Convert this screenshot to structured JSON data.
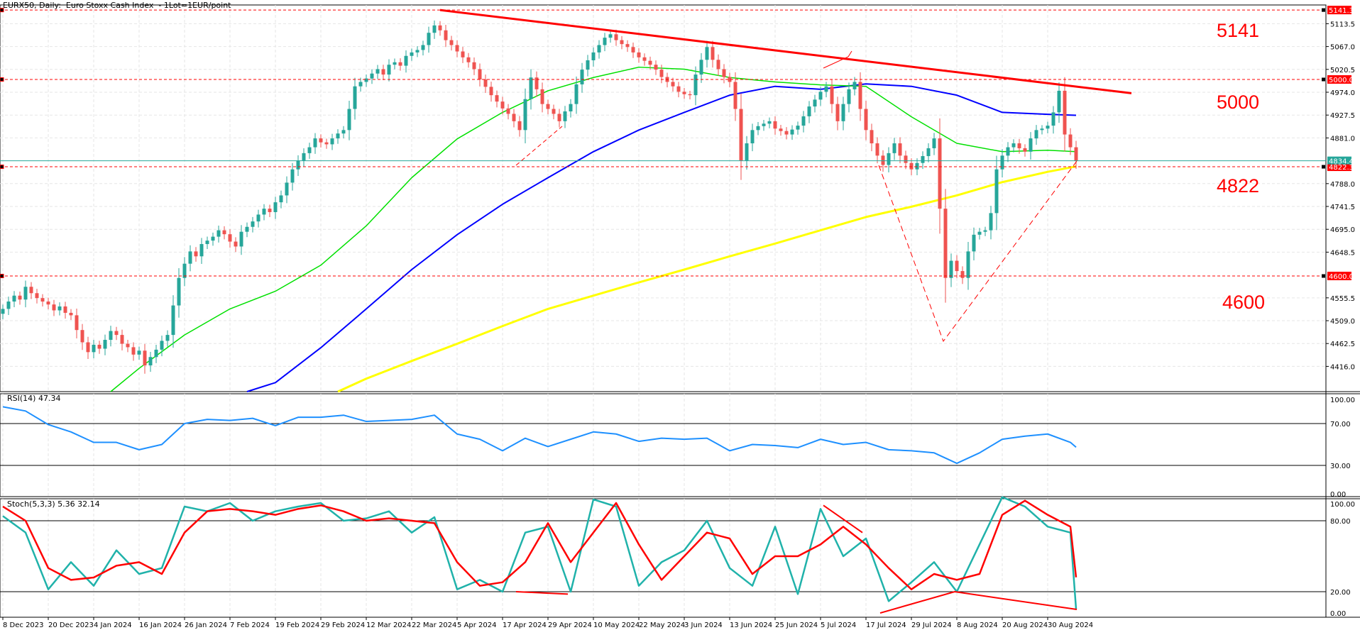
{
  "header": {
    "title": "EURX50, Daily:  Euro Stoxx Cash Index  - 1Lot=1EUR/point"
  },
  "colors": {
    "bull": "#26a69a",
    "bear": "#ef5350",
    "level": "#ff0000",
    "ma_fast": "#00e000",
    "ma_mid": "#0000ff",
    "ma_slow": "#ffff00",
    "rsi": "#1e90ff",
    "stoch_main": "#20b2aa",
    "stoch_signal": "#ff0000",
    "current": "#26a69a"
  },
  "annotations": [
    "5141",
    "5000",
    "4822",
    "4600"
  ],
  "chart_data": [
    {
      "type": "candlestick",
      "title": "EURX50, Daily:  Euro Stoxx Cash Index  - 1Lot=1EUR/point",
      "x_tick_labels": [
        "8 Dec 2023",
        "20 Dec 2023",
        "4 Jan 2024",
        "16 Jan 2024",
        "26 Jan 2024",
        "7 Feb 2024",
        "19 Feb 2024",
        "29 Feb 2024",
        "12 Mar 2024",
        "22 Mar 2024",
        "5 Apr 2024",
        "17 Apr 2024",
        "29 Apr 2024",
        "10 May 2024",
        "22 May 2024",
        "3 Jun 2024",
        "13 Jun 2024",
        "25 Jun 2024",
        "5 Jul 2024",
        "17 Jul 2024",
        "29 Jul 2024",
        "8 Aug 2024",
        "20 Aug 2024",
        "30 Aug 2024"
      ],
      "y_tick_labels": [
        "5113.5",
        "5067.0",
        "5020.5",
        "4974.0",
        "4927.5",
        "4881.0",
        "4788.0",
        "4741.5",
        "4695.0",
        "4648.5",
        "4555.5",
        "4509.0",
        "4462.5",
        "4416.0"
      ],
      "ylim": [
        4367,
        5152
      ],
      "grid": true,
      "close": [
        4533,
        4548,
        4560,
        4552,
        4578,
        4565,
        4555,
        4548,
        4542,
        4530,
        4538,
        4525,
        4520,
        4490,
        4465,
        4445,
        4460,
        4452,
        4470,
        4488,
        4480,
        4462,
        4455,
        4440,
        4448,
        4418,
        4435,
        4450,
        4468,
        4480,
        4540,
        4596,
        4625,
        4650,
        4640,
        4665,
        4672,
        4680,
        4693,
        4685,
        4670,
        4660,
        4690,
        4700,
        4711,
        4725,
        4737,
        4730,
        4750,
        4764,
        4790,
        4817,
        4835,
        4850,
        4862,
        4880,
        4872,
        4868,
        4880,
        4890,
        4897,
        4940,
        4986,
        4995,
        5002,
        5012,
        5021,
        5010,
        5030,
        5035,
        5028,
        5048,
        5055,
        5060,
        5070,
        5095,
        5110,
        5100,
        5080,
        5070,
        5057,
        5045,
        5035,
        5021,
        5000,
        4985,
        4968,
        4955,
        4941,
        4930,
        4915,
        4897,
        4960,
        5004,
        4980,
        4950,
        4940,
        4930,
        4915,
        4935,
        4950,
        4990,
        5020,
        5039,
        5055,
        5070,
        5085,
        5092,
        5080,
        5072,
        5066,
        5055,
        5045,
        5038,
        5030,
        5020,
        5005,
        4995,
        4986,
        4975,
        4970,
        4968,
        5010,
        5040,
        5066,
        5040,
        5021,
        5005,
        4995,
        4940,
        4835,
        4870,
        4897,
        4905,
        4910,
        4915,
        4900,
        4895,
        4888,
        4898,
        4906,
        4925,
        4945,
        4959,
        4975,
        4986,
        4950,
        4915,
        4950,
        4980,
        4995,
        4940,
        4897,
        4870,
        4845,
        4826,
        4850,
        4870,
        4845,
        4830,
        4817,
        4830,
        4844,
        4860,
        4880,
        4737,
        4596,
        4631,
        4610,
        4596,
        4650,
        4684,
        4690,
        4693,
        4728,
        4817,
        4845,
        4862,
        4870,
        4860,
        4853,
        4880,
        4897,
        4900,
        4906,
        4933,
        4977,
        4888,
        4862,
        4834.4
      ],
      "moving_averages_at_tick_labels_and_last": {
        "fast_green": [
          null,
          null,
          null,
          4412,
          4480,
          4533,
          4569,
          4622,
          4702,
          4800,
          4879,
          4933,
          4977,
          5004,
          5025,
          5021,
          5004,
          4995,
          4989,
          4986,
          4924,
          4870,
          4853,
          4856,
          4853
        ],
        "mid_blue": [
          null,
          null,
          null,
          null,
          null,
          null,
          4383,
          4454,
          4533,
          4613,
          4684,
          4746,
          4800,
          4853,
          4897,
          4933,
          4968,
          4986,
          4980,
          4991,
          4986,
          4968,
          4933,
          4929,
          4927
        ],
        "slow_yellow": [
          null,
          null,
          null,
          null,
          null,
          null,
          null,
          null,
          4391,
          4427,
          4462,
          4498,
          4533,
          4560,
          4587,
          4613,
          4640,
          4666,
          4693,
          4720,
          4741,
          4764,
          4791,
          4812,
          4823
        ]
      },
      "levels": [
        {
          "price": 5141.3,
          "label": "5141.3"
        },
        {
          "price": 5000.0,
          "label": "5000.0"
        },
        {
          "price": 4822.3,
          "label": "4822.3"
        },
        {
          "price": 4600.0,
          "label": "4600.0"
        }
      ],
      "current_price": {
        "price": 4834.4,
        "label": "4834.4"
      },
      "trendline": {
        "from_price": 5141.3,
        "to_price": 4972
      }
    },
    {
      "type": "line",
      "title": "RSI(14) 47.34",
      "name": "RSI(14)",
      "last_value": 47.34,
      "ylim": [
        0,
        100
      ],
      "y_tick_labels": [
        "100.00",
        "70.00",
        "30.00",
        "0.00"
      ],
      "levels": [
        70,
        30
      ],
      "values_every_4_bars": [
        86,
        82,
        69,
        62,
        52,
        52,
        45,
        50,
        70,
        74,
        73,
        75,
        68,
        76,
        76,
        78,
        72,
        73,
        74,
        78,
        60,
        55,
        44,
        56,
        48,
        55,
        62,
        60,
        53,
        56,
        55,
        56,
        44,
        50,
        49,
        47,
        55,
        50,
        52,
        45,
        44,
        42,
        32,
        42,
        55,
        58,
        60,
        52,
        47.34
      ]
    },
    {
      "type": "line",
      "title": "Stoch(5,3,3) 5.36 32.14",
      "name": "Stoch(5,3,3)",
      "last_main": 5.36,
      "last_signal": 32.14,
      "ylim": [
        0,
        100
      ],
      "y_tick_labels": [
        "100.00",
        "80.00",
        "20.00",
        "0.00"
      ],
      "levels": [
        80,
        20
      ],
      "main_every_4_bars": [
        84,
        70,
        22,
        45,
        25,
        55,
        35,
        40,
        92,
        88,
        95,
        80,
        88,
        92,
        95,
        80,
        82,
        88,
        70,
        83,
        22,
        30,
        20,
        70,
        75,
        20,
        98,
        92,
        25,
        45,
        55,
        80,
        40,
        25,
        75,
        18,
        90,
        50,
        65,
        12,
        28,
        45,
        20,
        60,
        100,
        92,
        75,
        70,
        5.36
      ],
      "signal_every_4_bars": [
        92,
        80,
        40,
        30,
        32,
        42,
        45,
        35,
        70,
        88,
        90,
        88,
        85,
        90,
        93,
        88,
        80,
        82,
        80,
        78,
        45,
        25,
        28,
        45,
        78,
        45,
        70,
        95,
        60,
        30,
        50,
        70,
        65,
        35,
        50,
        50,
        60,
        75,
        60,
        40,
        22,
        35,
        30,
        35,
        85,
        97,
        85,
        75,
        32.14
      ]
    }
  ]
}
